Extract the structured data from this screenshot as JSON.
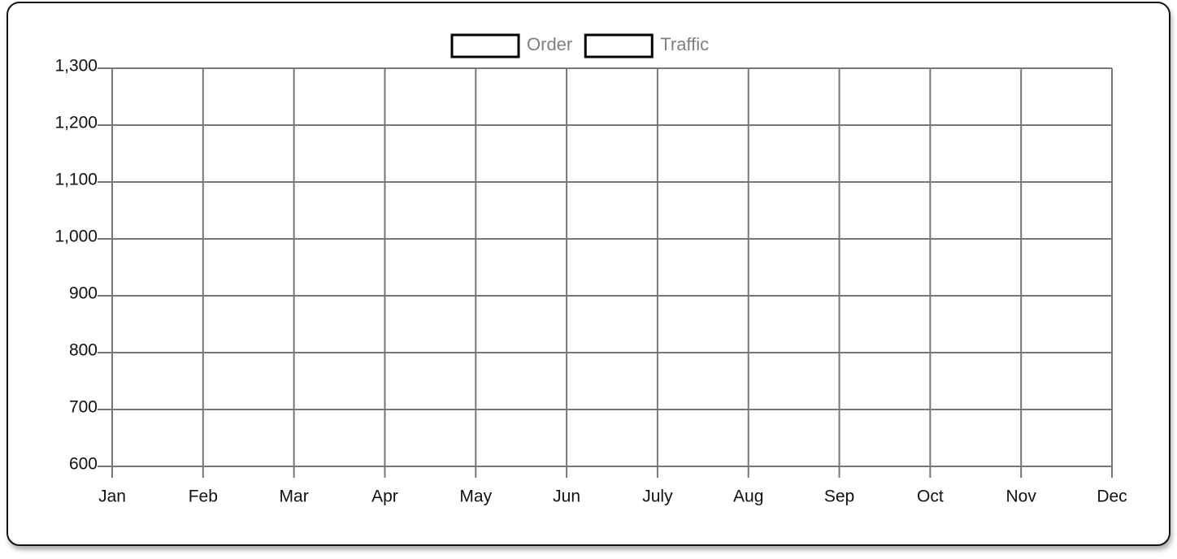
{
  "chart_data": {
    "type": "line",
    "categories": [
      "Jan",
      "Feb",
      "Mar",
      "Apr",
      "May",
      "Jun",
      "July",
      "Aug",
      "Sep",
      "Oct",
      "Nov",
      "Dec"
    ],
    "series": [
      {
        "name": "Order",
        "color": "#000000",
        "values": [
          null,
          null,
          null,
          null,
          null,
          null,
          null,
          null,
          null,
          null,
          null,
          null
        ]
      },
      {
        "name": "Traffic",
        "color": "#000000",
        "values": [
          null,
          null,
          null,
          null,
          null,
          null,
          null,
          null,
          null,
          null,
          null,
          null
        ]
      }
    ],
    "ylim": [
      600,
      1300
    ],
    "yticks": [
      600,
      700,
      800,
      900,
      {
        "value": 1000,
        "label": "1,000"
      },
      {
        "value": 1100,
        "label": "1,100"
      },
      {
        "value": 1200,
        "label": "1,200"
      },
      {
        "value": 1300,
        "label": "1,300"
      }
    ],
    "grid": true
  }
}
